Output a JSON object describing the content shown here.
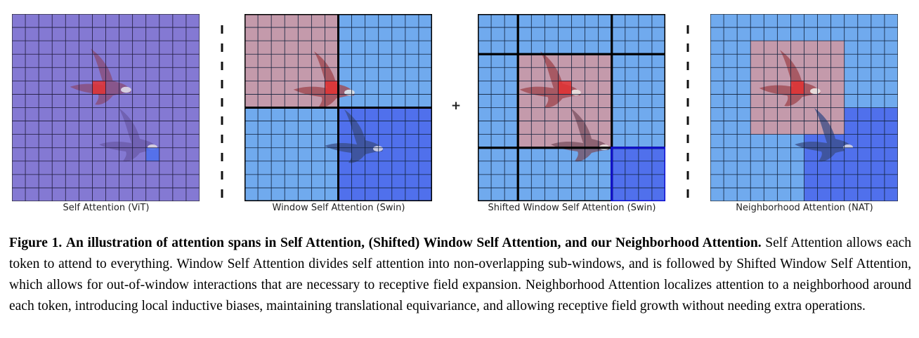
{
  "panels": [
    {
      "id": "vit",
      "label": "Self Attention (ViT)"
    },
    {
      "id": "swin",
      "label": "Window Self Attention (Swin)"
    },
    {
      "id": "shifted",
      "label": "Shifted Window Self Attention (Swin)"
    },
    {
      "id": "nat",
      "label": "Neighborhood Attention (NAT)"
    }
  ],
  "separator_symbols": [
    "|",
    "+",
    "|"
  ],
  "caption": {
    "label": "Figure 1.",
    "title": "An illustration of attention spans in Self Attention, (Shifted) Window Self Attention, and our Neighborhood Attention.",
    "body": "Self Attention allows each token to attend to everything. Window Self Attention divides self attention into non-overlapping sub-windows, and is followed by Shifted Window Self Attention, which allows for out-of-window interactions that are necessary to receptive field expansion. Neighborhood Attention localizes attention to a neighborhood around each token, introducing local inductive biases, maintaining translational equivariance, and allowing receptive field growth without needing extra operations."
  },
  "colors": {
    "vit_background": "#8479d3",
    "grid_background": "#70aaee",
    "attended_blue": "#5070ec",
    "attended_pink": "#c49aab",
    "query_red": "#e23333",
    "window_border": "#000000",
    "highlight_border": "#1010d0"
  }
}
